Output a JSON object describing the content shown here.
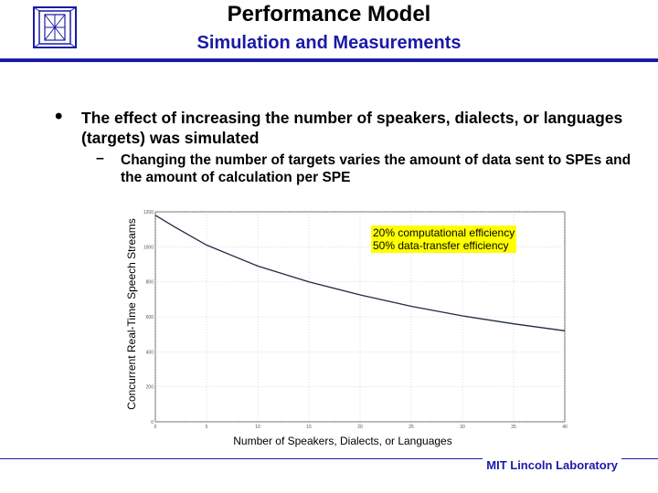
{
  "slide": {
    "title": "Performance Model",
    "subtitle": "Simulation and Measurements",
    "bullet": "The effect of increasing the number of speakers, dialects, or languages (targets) was simulated",
    "sub_bullet": "Changing the number of targets varies the amount of data sent to SPEs and the amount of calculation per SPE",
    "footer": "MIT Lincoln Laboratory",
    "icons": {
      "logo": "lincoln-lab-logo-icon"
    },
    "colors": {
      "accent": "#1a1aa6",
      "annotation_bg": "#ffff00",
      "line": "#1f2a44"
    }
  },
  "chart_data": {
    "type": "line",
    "xlabel": "Number of Speakers, Dialects, or Languages",
    "ylabel": "Concurrent Real-Time Speech Streams",
    "xlim": [
      0,
      40
    ],
    "ylim": [
      0,
      1200
    ],
    "xticks": [
      "0",
      "5",
      "10",
      "15",
      "20",
      "25",
      "30",
      "35",
      "40"
    ],
    "yticks": [
      "0",
      "200",
      "400",
      "600",
      "800",
      "1000",
      "1200"
    ],
    "grid": true,
    "annotation": [
      "20% computational efficiency",
      "50% data-transfer efficiency"
    ],
    "series": [
      {
        "x": [
          0,
          2,
          5,
          10,
          15,
          20,
          25,
          30,
          35,
          40
        ],
        "y": [
          1180,
          1110,
          1010,
          890,
          800,
          725,
          660,
          605,
          560,
          520
        ]
      }
    ]
  }
}
